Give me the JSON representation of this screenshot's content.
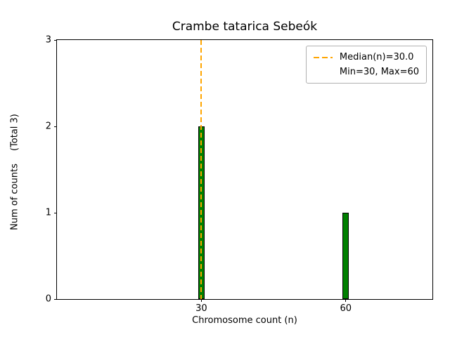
{
  "title": "Crambe tatarica Sebeók",
  "chart_data": {
    "type": "bar",
    "title": "Crambe tatarica Sebeók",
    "xlabel": "Chromosome count (n)",
    "ylabel": "Num of counts",
    "ylabel_note": "(Total 3)",
    "categories": [
      30,
      60
    ],
    "values": [
      2,
      1
    ],
    "total_counts": 3,
    "median": 30.0,
    "min": 30,
    "max": 60,
    "bar_color": "#008000",
    "bar_edge_color": "#000000",
    "median_line_color": "#ffa500",
    "xticks": [
      30,
      60
    ],
    "yticks": [
      0,
      1,
      2,
      3
    ],
    "xlim": [
      0,
      78
    ],
    "ylim": [
      0,
      3
    ],
    "grid": false,
    "legend_position": "upper right"
  },
  "legend": {
    "items": [
      {
        "label": "Median(n)=30.0",
        "sample": "dashed-orange-line"
      },
      {
        "label": "Min=30, Max=60",
        "sample": "none"
      }
    ]
  }
}
